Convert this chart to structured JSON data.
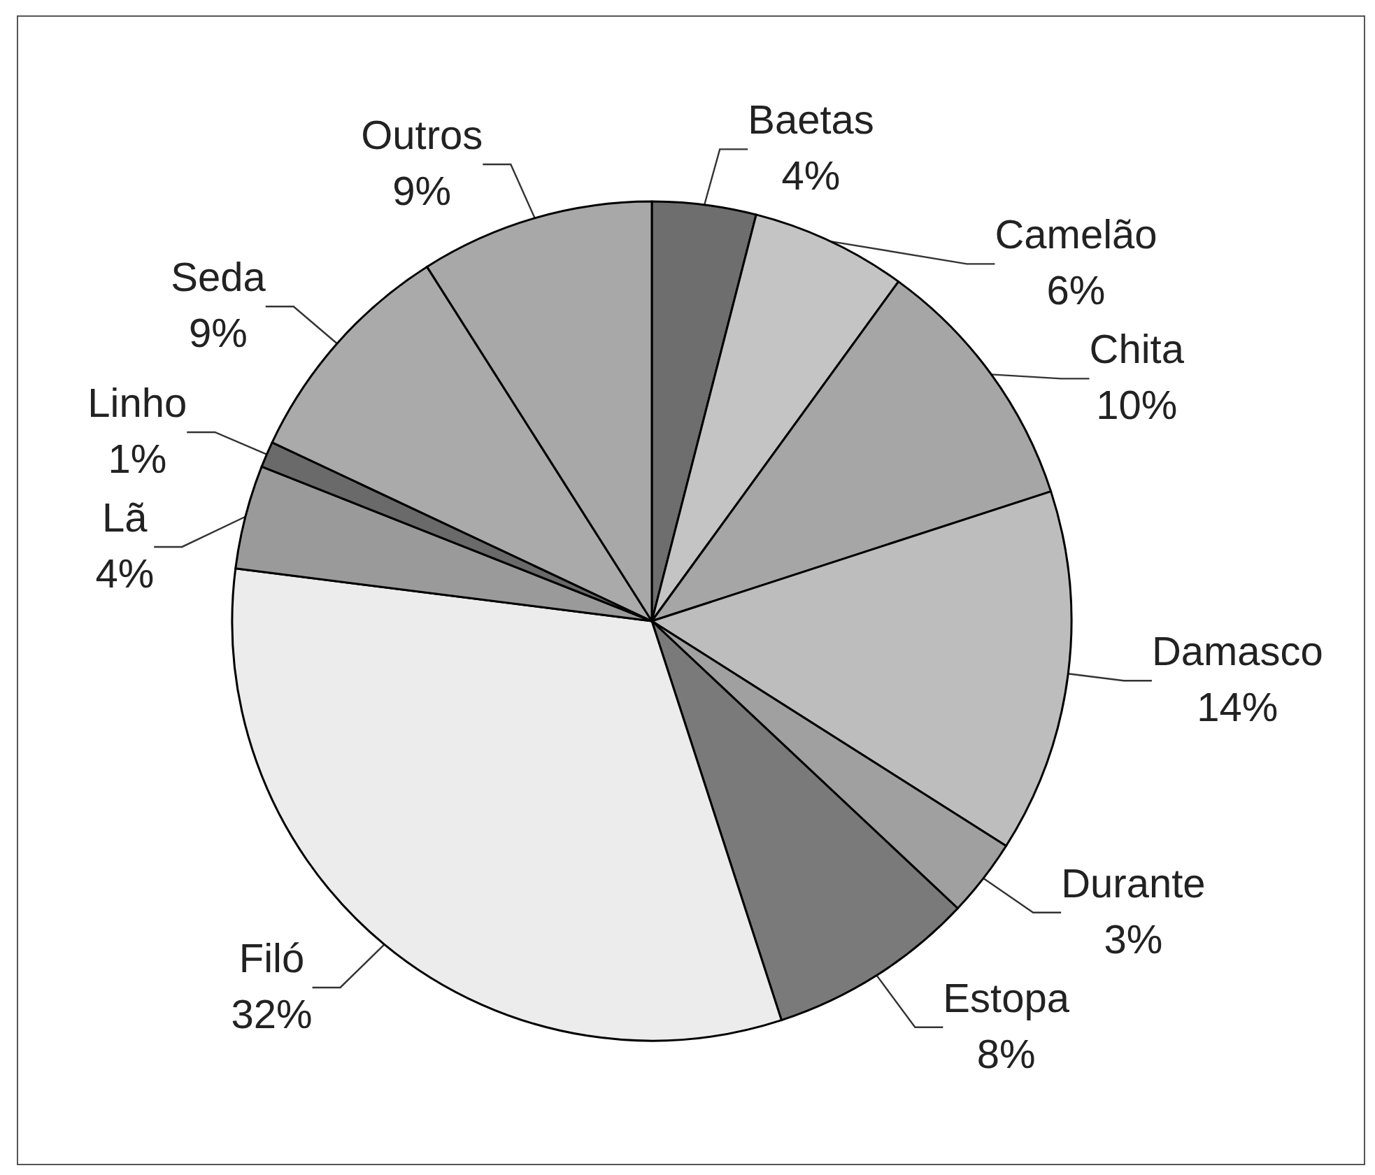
{
  "chart_data": {
    "type": "pie",
    "categories": [
      "Baetas",
      "Camelão",
      "Chita",
      "Damasco",
      "Durante",
      "Estopa",
      "Filó",
      "Lã",
      "Linho",
      "Seda",
      "Outros"
    ],
    "values": [
      4,
      6,
      10,
      14,
      3,
      8,
      32,
      4,
      1,
      9,
      9
    ],
    "value_labels": [
      "4%",
      "6%",
      "10%",
      "14%",
      "3%",
      "8%",
      "32%",
      "4%",
      "1%",
      "9%",
      "9%"
    ],
    "colors": [
      "#6e6e6e",
      "#c4c4c4",
      "#a6a6a6",
      "#bdbdbd",
      "#a0a0a0",
      "#7a7a7a",
      "#ececec",
      "#9a9a9a",
      "#6a6a6a",
      "#aaaaaa",
      "#a8a8a8"
    ],
    "legend": false
  }
}
